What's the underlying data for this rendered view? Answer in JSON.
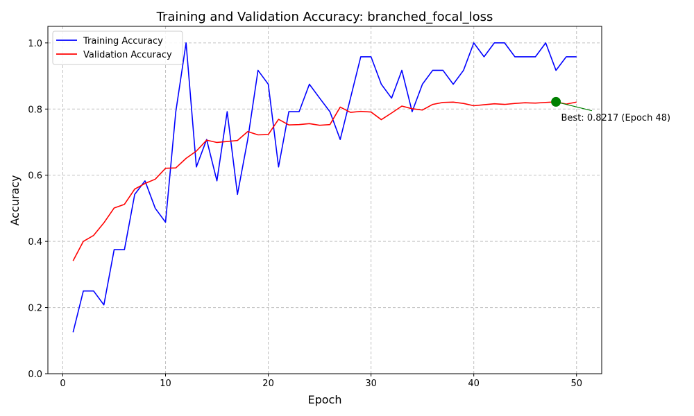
{
  "chart_data": {
    "type": "line",
    "title": "Training and Validation Accuracy: branched_focal_loss",
    "xlabel": "Epoch",
    "ylabel": "Accuracy",
    "xlim": [
      -1.45,
      52.45
    ],
    "ylim": [
      0.0,
      1.05
    ],
    "xticks": [
      0,
      10,
      20,
      30,
      40,
      50
    ],
    "yticks": [
      0.0,
      0.2,
      0.4,
      0.6,
      0.8,
      1.0
    ],
    "xtick_labels": [
      "0",
      "10",
      "20",
      "30",
      "40",
      "50"
    ],
    "ytick_labels": [
      "0.0",
      "0.2",
      "0.4",
      "0.6",
      "0.8",
      "1.0"
    ],
    "grid": true,
    "legend_position": "top-left",
    "x": [
      1,
      2,
      3,
      4,
      5,
      6,
      7,
      8,
      9,
      10,
      11,
      12,
      13,
      14,
      15,
      16,
      17,
      18,
      19,
      20,
      21,
      22,
      23,
      24,
      25,
      26,
      27,
      28,
      29,
      30,
      31,
      32,
      33,
      34,
      35,
      36,
      37,
      38,
      39,
      40,
      41,
      42,
      43,
      44,
      45,
      46,
      47,
      48,
      49,
      50
    ],
    "series": [
      {
        "name": "Training Accuracy",
        "color": "#0000ff",
        "values": [
          0.125,
          0.25,
          0.25,
          0.208,
          0.375,
          0.375,
          0.542,
          0.583,
          0.5,
          0.458,
          0.792,
          1.0,
          0.625,
          0.708,
          0.583,
          0.792,
          0.542,
          0.708,
          0.917,
          0.875,
          0.625,
          0.792,
          0.792,
          0.875,
          0.833,
          0.792,
          0.708,
          0.833,
          0.958,
          0.958,
          0.875,
          0.833,
          0.917,
          0.792,
          0.875,
          0.917,
          0.917,
          0.875,
          0.917,
          1.0,
          0.958,
          1.0,
          1.0,
          0.958,
          0.958,
          0.958,
          1.0,
          0.917,
          0.958,
          0.958
        ]
      },
      {
        "name": "Validation Accuracy",
        "color": "#ff0000",
        "values": [
          0.341,
          0.4,
          0.418,
          0.456,
          0.501,
          0.512,
          0.558,
          0.575,
          0.588,
          0.621,
          0.622,
          0.651,
          0.673,
          0.706,
          0.699,
          0.702,
          0.705,
          0.732,
          0.722,
          0.723,
          0.769,
          0.752,
          0.753,
          0.756,
          0.751,
          0.753,
          0.806,
          0.79,
          0.793,
          0.791,
          0.768,
          0.788,
          0.809,
          0.801,
          0.797,
          0.814,
          0.82,
          0.821,
          0.817,
          0.81,
          0.813,
          0.816,
          0.814,
          0.817,
          0.819,
          0.818,
          0.82,
          0.8217,
          0.815,
          0.821
        ]
      }
    ],
    "annotation": {
      "text": "Best: 0.8217 (Epoch 48)",
      "point": [
        48,
        0.8217
      ],
      "text_at": [
        48.5,
        0.765
      ],
      "arrow_to": [
        51.5,
        0.795
      ],
      "marker_color": "#008000"
    }
  }
}
